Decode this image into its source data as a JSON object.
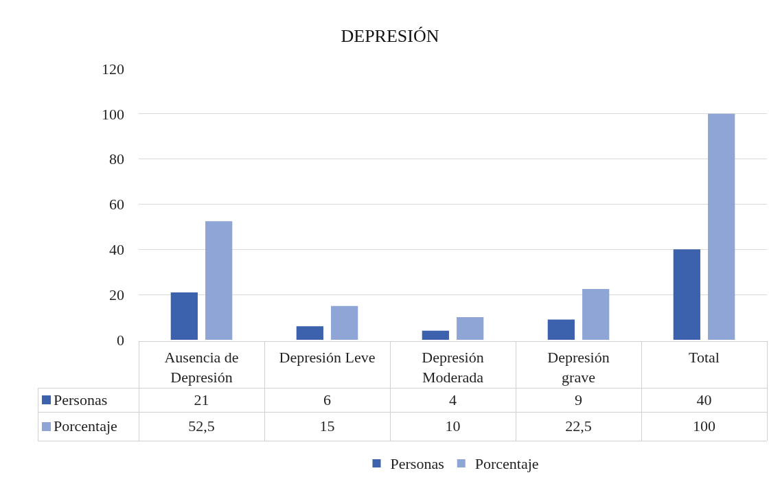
{
  "chart_data": {
    "type": "bar",
    "title": "DEPRESIÓN",
    "categories": [
      "Ausencia de Depresión",
      "Depresión Leve",
      "Depresión Moderada",
      "Depresión grave",
      "Total"
    ],
    "series": [
      {
        "name": "Personas",
        "color": "#3c62ad",
        "values": [
          21,
          6,
          4,
          9,
          40
        ],
        "value_labels": [
          "21",
          "6",
          "4",
          "9",
          "40"
        ]
      },
      {
        "name": "Porcentaje",
        "color": "#8ea5d6",
        "values": [
          52.5,
          15,
          10,
          22.5,
          100
        ],
        "value_labels": [
          "52,5",
          "15",
          "10",
          "22,5",
          "100"
        ]
      }
    ],
    "ylim": [
      0,
      120
    ],
    "yticks": [
      0,
      20,
      40,
      60,
      80,
      100,
      120
    ],
    "grid": "y",
    "legend": "bottom"
  }
}
